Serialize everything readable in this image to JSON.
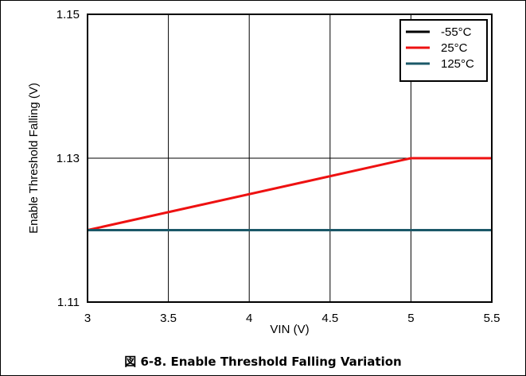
{
  "chart_data": {
    "type": "line",
    "xlabel": "VIN (V)",
    "ylabel": "Enable Threshold Falling (V)",
    "xlim": [
      3,
      5.5
    ],
    "ylim": [
      1.11,
      1.15
    ],
    "x_ticks": [
      "3",
      "3.5",
      "4",
      "4.5",
      "5",
      "5.5"
    ],
    "x_tick_values": [
      3,
      3.5,
      4,
      4.5,
      5,
      5.5
    ],
    "y_ticks": [
      "1.11",
      "1.13",
      "1.15"
    ],
    "y_tick_values": [
      1.11,
      1.13,
      1.15
    ],
    "grid": true,
    "legend_position": "top-right",
    "series": [
      {
        "name": "-55°C",
        "color": "#000000",
        "x": [
          3,
          5.5
        ],
        "y": [
          1.12,
          1.12
        ]
      },
      {
        "name": "25°C",
        "color": "#ee1111",
        "x": [
          3,
          5,
          5.5
        ],
        "y": [
          1.12,
          1.13,
          1.13
        ]
      },
      {
        "name": "125°C",
        "color": "#1b5868",
        "x": [
          3,
          5.5
        ],
        "y": [
          1.12,
          1.12
        ]
      }
    ]
  },
  "caption": "図 6-8. Enable Threshold Falling Variation"
}
